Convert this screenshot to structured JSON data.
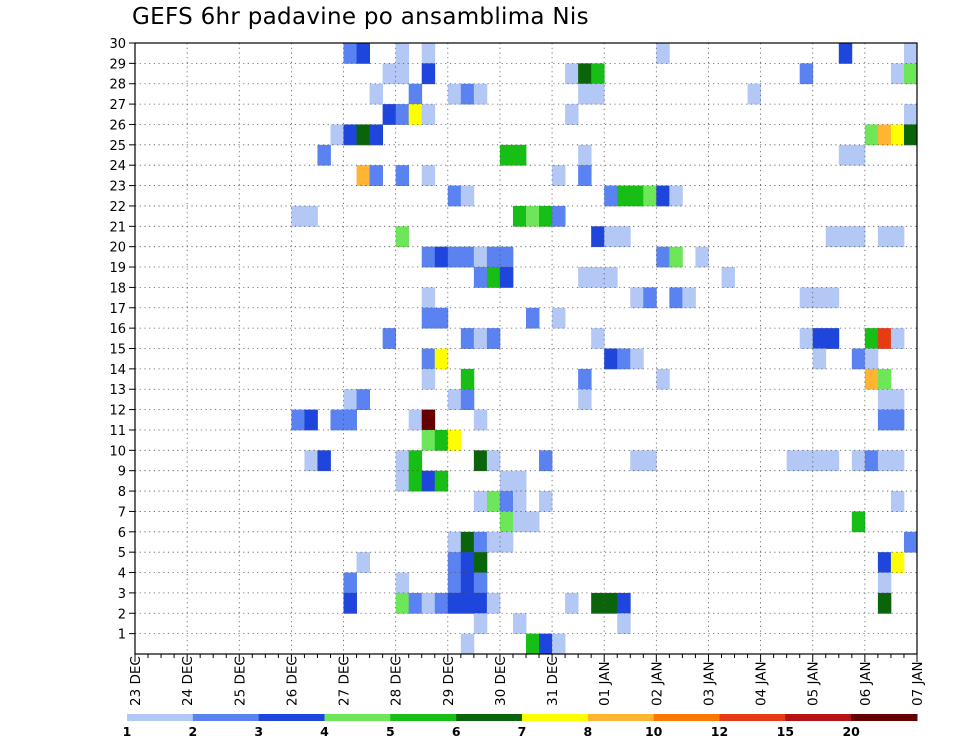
{
  "chart_data": {
    "type": "heatmap",
    "title": "GEFS 6hr padavine po ansamblima Nis",
    "xlabel": "",
    "ylabel": "",
    "x_tick_labels": [
      "23 DEC",
      "24 DEC",
      "25 DEC",
      "26 DEC",
      "27 DEC",
      "28 DEC",
      "29 DEC",
      "30 DEC",
      "31 DEC",
      "01 JAN",
      "02 JAN",
      "03 JAN",
      "04 JAN",
      "05 JAN",
      "06 JAN",
      "07 JAN"
    ],
    "y_tick_labels": [
      "1",
      "2",
      "3",
      "4",
      "5",
      "6",
      "7",
      "8",
      "9",
      "10",
      "11",
      "12",
      "13",
      "14",
      "15",
      "16",
      "17",
      "18",
      "19",
      "20",
      "21",
      "22",
      "23",
      "24",
      "25",
      "26",
      "27",
      "28",
      "29",
      "30"
    ],
    "xlim_days": [
      0,
      15
    ],
    "ylim": [
      0,
      30
    ],
    "steps_per_day": 4,
    "grid": true,
    "legend_position": "bottom",
    "colorbar": {
      "ticks": [
        "1",
        "2",
        "3",
        "4",
        "5",
        "6",
        "7",
        "8",
        "10",
        "12",
        "15",
        "20"
      ],
      "colors": [
        "#b4c8f5",
        "#5a82f0",
        "#1e46dc",
        "#6ee65a",
        "#16be16",
        "#0a640a",
        "#ffff00",
        "#ffb432",
        "#ff7800",
        "#e63c14",
        "#b41414",
        "#640000"
      ]
    },
    "cells": [
      {
        "m": 29,
        "x": [
          16,
          17
        ],
        "lvl": [
          2,
          3
        ]
      },
      {
        "m": 29,
        "x": [
          20
        ],
        "lvl": [
          1
        ]
      },
      {
        "m": 29,
        "x": [
          22
        ],
        "lvl": [
          1
        ]
      },
      {
        "m": 29,
        "x": [
          40
        ],
        "lvl": [
          1
        ]
      },
      {
        "m": 29,
        "x": [
          54
        ],
        "lvl": [
          3
        ]
      },
      {
        "m": 29,
        "x": [
          59
        ],
        "lvl": [
          1
        ]
      },
      {
        "m": 28,
        "x": [
          19,
          20
        ],
        "lvl": [
          1,
          1
        ]
      },
      {
        "m": 28,
        "x": [
          22
        ],
        "lvl": [
          3
        ]
      },
      {
        "m": 28,
        "x": [
          33
        ],
        "lvl": [
          1
        ]
      },
      {
        "m": 28,
        "x": [
          34,
          35
        ],
        "lvl": [
          6,
          5
        ]
      },
      {
        "m": 28,
        "x": [
          51
        ],
        "lvl": [
          2
        ]
      },
      {
        "m": 28,
        "x": [
          58
        ],
        "lvl": [
          1
        ]
      },
      {
        "m": 28,
        "x": [
          59
        ],
        "lvl": [
          4
        ]
      },
      {
        "m": 27,
        "x": [
          18
        ],
        "lvl": [
          1
        ]
      },
      {
        "m": 27,
        "x": [
          21
        ],
        "lvl": [
          2
        ]
      },
      {
        "m": 27,
        "x": [
          24,
          25,
          26
        ],
        "lvl": [
          1,
          2,
          1
        ]
      },
      {
        "m": 27,
        "x": [
          34,
          35
        ],
        "lvl": [
          1,
          1
        ]
      },
      {
        "m": 27,
        "x": [
          47
        ],
        "lvl": [
          1
        ]
      },
      {
        "m": 26,
        "x": [
          19,
          20,
          21,
          22
        ],
        "lvl": [
          3,
          2,
          7,
          1
        ]
      },
      {
        "m": 26,
        "x": [
          33
        ],
        "lvl": [
          1
        ]
      },
      {
        "m": 26,
        "x": [
          59
        ],
        "lvl": [
          1
        ]
      },
      {
        "m": 25,
        "x": [
          15,
          16,
          17,
          18
        ],
        "lvl": [
          1,
          3,
          6,
          3
        ]
      },
      {
        "m": 25,
        "x": [
          56,
          57,
          58,
          59
        ],
        "lvl": [
          4,
          8,
          7,
          6
        ]
      },
      {
        "m": 24,
        "x": [
          14
        ],
        "lvl": [
          2
        ]
      },
      {
        "m": 24,
        "x": [
          28,
          29
        ],
        "lvl": [
          5,
          5
        ]
      },
      {
        "m": 24,
        "x": [
          34
        ],
        "lvl": [
          1
        ]
      },
      {
        "m": 24,
        "x": [
          54,
          55
        ],
        "lvl": [
          1,
          1
        ]
      },
      {
        "m": 23,
        "x": [
          17,
          18
        ],
        "lvl": [
          8,
          2
        ]
      },
      {
        "m": 23,
        "x": [
          20
        ],
        "lvl": [
          2
        ]
      },
      {
        "m": 23,
        "x": [
          22
        ],
        "lvl": [
          1
        ]
      },
      {
        "m": 23,
        "x": [
          32
        ],
        "lvl": [
          1
        ]
      },
      {
        "m": 23,
        "x": [
          34
        ],
        "lvl": [
          2
        ]
      },
      {
        "m": 22,
        "x": [
          24,
          25
        ],
        "lvl": [
          2,
          1
        ]
      },
      {
        "m": 22,
        "x": [
          36,
          37,
          38,
          39,
          40,
          41
        ],
        "lvl": [
          2,
          5,
          5,
          4,
          3,
          1
        ]
      },
      {
        "m": 21,
        "x": [
          12,
          13
        ],
        "lvl": [
          1,
          1
        ]
      },
      {
        "m": 21,
        "x": [
          29,
          30,
          31,
          32
        ],
        "lvl": [
          5,
          4,
          5,
          2
        ]
      },
      {
        "m": 20,
        "x": [
          20
        ],
        "lvl": [
          4
        ]
      },
      {
        "m": 20,
        "x": [
          35,
          36,
          37
        ],
        "lvl": [
          3,
          1,
          1
        ]
      },
      {
        "m": 20,
        "x": [
          53,
          54,
          55
        ],
        "lvl": [
          1,
          1,
          1
        ]
      },
      {
        "m": 20,
        "x": [
          57,
          58
        ],
        "lvl": [
          1,
          1
        ]
      },
      {
        "m": 19,
        "x": [
          22,
          23,
          24,
          25,
          26,
          27,
          28
        ],
        "lvl": [
          2,
          3,
          2,
          2,
          1,
          2,
          2
        ]
      },
      {
        "m": 19,
        "x": [
          40,
          41
        ],
        "lvl": [
          2,
          4
        ]
      },
      {
        "m": 19,
        "x": [
          43
        ],
        "lvl": [
          1
        ]
      },
      {
        "m": 18,
        "x": [
          26,
          27,
          28
        ],
        "lvl": [
          2,
          5,
          3
        ]
      },
      {
        "m": 18,
        "x": [
          34,
          35,
          36
        ],
        "lvl": [
          1,
          1,
          1
        ]
      },
      {
        "m": 18,
        "x": [
          45
        ],
        "lvl": [
          1
        ]
      },
      {
        "m": 17,
        "x": [
          22
        ],
        "lvl": [
          1
        ]
      },
      {
        "m": 17,
        "x": [
          38,
          39
        ],
        "lvl": [
          1,
          2
        ]
      },
      {
        "m": 17,
        "x": [
          41,
          42
        ],
        "lvl": [
          2,
          1
        ]
      },
      {
        "m": 17,
        "x": [
          51,
          52,
          53
        ],
        "lvl": [
          1,
          1,
          1
        ]
      },
      {
        "m": 16,
        "x": [
          22,
          23
        ],
        "lvl": [
          2,
          2
        ]
      },
      {
        "m": 16,
        "x": [
          30
        ],
        "lvl": [
          2
        ]
      },
      {
        "m": 16,
        "x": [
          32
        ],
        "lvl": [
          1
        ]
      },
      {
        "m": 15,
        "x": [
          19
        ],
        "lvl": [
          2
        ]
      },
      {
        "m": 15,
        "x": [
          25,
          26,
          27
        ],
        "lvl": [
          2,
          1,
          2
        ]
      },
      {
        "m": 15,
        "x": [
          35
        ],
        "lvl": [
          1
        ]
      },
      {
        "m": 15,
        "x": [
          51,
          52,
          53
        ],
        "lvl": [
          1,
          3,
          3
        ]
      },
      {
        "m": 15,
        "x": [
          56,
          57,
          58
        ],
        "lvl": [
          5,
          10,
          1
        ]
      },
      {
        "m": 14,
        "x": [
          22,
          23
        ],
        "lvl": [
          2,
          7
        ]
      },
      {
        "m": 14,
        "x": [
          36,
          37,
          38
        ],
        "lvl": [
          3,
          2,
          1
        ]
      },
      {
        "m": 14,
        "x": [
          52
        ],
        "lvl": [
          1
        ]
      },
      {
        "m": 14,
        "x": [
          55,
          56
        ],
        "lvl": [
          2,
          1
        ]
      },
      {
        "m": 13,
        "x": [
          22
        ],
        "lvl": [
          1
        ]
      },
      {
        "m": 13,
        "x": [
          25
        ],
        "lvl": [
          5
        ]
      },
      {
        "m": 13,
        "x": [
          34
        ],
        "lvl": [
          2
        ]
      },
      {
        "m": 13,
        "x": [
          40
        ],
        "lvl": [
          1
        ]
      },
      {
        "m": 13,
        "x": [
          56,
          57
        ],
        "lvl": [
          8,
          4
        ]
      },
      {
        "m": 12,
        "x": [
          16,
          17
        ],
        "lvl": [
          1,
          2
        ]
      },
      {
        "m": 12,
        "x": [
          24,
          25
        ],
        "lvl": [
          1,
          2
        ]
      },
      {
        "m": 12,
        "x": [
          34
        ],
        "lvl": [
          1
        ]
      },
      {
        "m": 12,
        "x": [
          57,
          58
        ],
        "lvl": [
          1,
          1
        ]
      },
      {
        "m": 11,
        "x": [
          12,
          13
        ],
        "lvl": [
          2,
          3
        ]
      },
      {
        "m": 11,
        "x": [
          15,
          16
        ],
        "lvl": [
          2,
          2
        ]
      },
      {
        "m": 11,
        "x": [
          21,
          22
        ],
        "lvl": [
          1,
          12
        ]
      },
      {
        "m": 11,
        "x": [
          26
        ],
        "lvl": [
          1
        ]
      },
      {
        "m": 11,
        "x": [
          57,
          58
        ],
        "lvl": [
          2,
          2
        ]
      },
      {
        "m": 10,
        "x": [
          22,
          23,
          24
        ],
        "lvl": [
          4,
          5,
          7
        ]
      },
      {
        "m": 9,
        "x": [
          13,
          14
        ],
        "lvl": [
          1,
          3
        ]
      },
      {
        "m": 9,
        "x": [
          20,
          21
        ],
        "lvl": [
          1,
          5
        ]
      },
      {
        "m": 9,
        "x": [
          26,
          27
        ],
        "lvl": [
          6,
          1
        ]
      },
      {
        "m": 9,
        "x": [
          31
        ],
        "lvl": [
          2
        ]
      },
      {
        "m": 9,
        "x": [
          38,
          39
        ],
        "lvl": [
          1,
          1
        ]
      },
      {
        "m": 9,
        "x": [
          50,
          51,
          52,
          53
        ],
        "lvl": [
          1,
          1,
          1,
          1
        ]
      },
      {
        "m": 9,
        "x": [
          55,
          56,
          57,
          58
        ],
        "lvl": [
          1,
          2,
          1,
          1
        ]
      },
      {
        "m": 8,
        "x": [
          20,
          21,
          22,
          23
        ],
        "lvl": [
          1,
          5,
          3,
          5
        ]
      },
      {
        "m": 8,
        "x": [
          28,
          29
        ],
        "lvl": [
          1,
          1
        ]
      },
      {
        "m": 7,
        "x": [
          26,
          27,
          28,
          29
        ],
        "lvl": [
          1,
          4,
          2,
          1
        ]
      },
      {
        "m": 7,
        "x": [
          31
        ],
        "lvl": [
          1
        ]
      },
      {
        "m": 7,
        "x": [
          58
        ],
        "lvl": [
          1
        ]
      },
      {
        "m": 6,
        "x": [
          28,
          29,
          30
        ],
        "lvl": [
          4,
          1,
          1
        ]
      },
      {
        "m": 6,
        "x": [
          55
        ],
        "lvl": [
          5
        ]
      },
      {
        "m": 5,
        "x": [
          24,
          25,
          26,
          27,
          28
        ],
        "lvl": [
          1,
          6,
          2,
          1,
          1
        ]
      },
      {
        "m": 5,
        "x": [
          59
        ],
        "lvl": [
          2
        ]
      },
      {
        "m": 4,
        "x": [
          17
        ],
        "lvl": [
          1
        ]
      },
      {
        "m": 4,
        "x": [
          24,
          25,
          26
        ],
        "lvl": [
          2,
          3,
          6
        ]
      },
      {
        "m": 4,
        "x": [
          57,
          58
        ],
        "lvl": [
          3,
          7
        ]
      },
      {
        "m": 3,
        "x": [
          16
        ],
        "lvl": [
          2
        ]
      },
      {
        "m": 3,
        "x": [
          20
        ],
        "lvl": [
          1
        ]
      },
      {
        "m": 3,
        "x": [
          24,
          25,
          26
        ],
        "lvl": [
          2,
          3,
          2
        ]
      },
      {
        "m": 3,
        "x": [
          57
        ],
        "lvl": [
          1
        ]
      },
      {
        "m": 2,
        "x": [
          16
        ],
        "lvl": [
          3
        ]
      },
      {
        "m": 2,
        "x": [
          20,
          21,
          22,
          23,
          24,
          25,
          26,
          27
        ],
        "lvl": [
          4,
          2,
          1,
          2,
          3,
          3,
          3,
          1
        ]
      },
      {
        "m": 2,
        "x": [
          33
        ],
        "lvl": [
          1
        ]
      },
      {
        "m": 2,
        "x": [
          35,
          36,
          37
        ],
        "lvl": [
          6,
          6,
          3
        ]
      },
      {
        "m": 2,
        "x": [
          57
        ],
        "lvl": [
          6
        ]
      },
      {
        "m": 1,
        "x": [
          26
        ],
        "lvl": [
          1
        ]
      },
      {
        "m": 1,
        "x": [
          29
        ],
        "lvl": [
          1
        ]
      },
      {
        "m": 1,
        "x": [
          37
        ],
        "lvl": [
          1
        ]
      },
      {
        "m": 0,
        "x": [
          25
        ],
        "lvl": [
          1
        ]
      },
      {
        "m": 0,
        "x": [
          30,
          31,
          32
        ],
        "lvl": [
          5,
          3,
          1
        ]
      }
    ]
  }
}
